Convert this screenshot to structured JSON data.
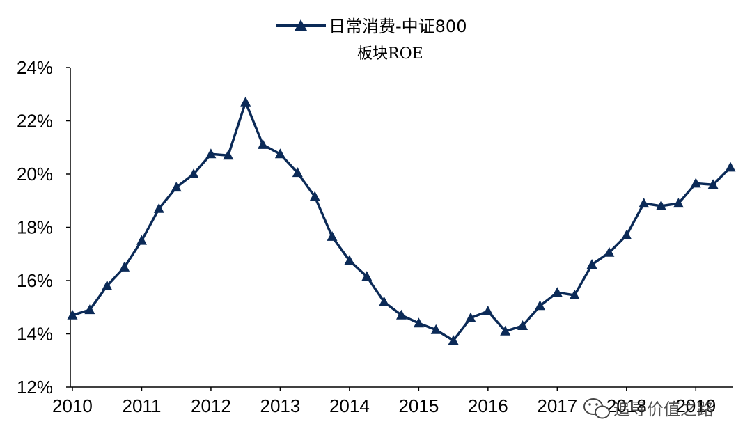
{
  "chart_data": {
    "type": "line",
    "legend": {
      "line1": "日常消费-中证800",
      "line2": "板块ROE",
      "placement": "top-center",
      "marker": "triangle"
    },
    "x_tick_labels": [
      "2010",
      "2011",
      "2012",
      "2013",
      "2014",
      "2015",
      "2016",
      "2017",
      "2018",
      "2019"
    ],
    "y_tick_labels": [
      "12%",
      "14%",
      "16%",
      "18%",
      "20%",
      "22%",
      "24%"
    ],
    "ylim": [
      12,
      24
    ],
    "grid": false,
    "series": [
      {
        "name": "日常消费-中证800板块ROE",
        "color": "#0b2a57",
        "x": [
          2010.0,
          2010.25,
          2010.5,
          2010.75,
          2011.0,
          2011.25,
          2011.5,
          2011.75,
          2012.0,
          2012.25,
          2012.5,
          2012.75,
          2013.0,
          2013.25,
          2013.5,
          2013.75,
          2014.0,
          2014.25,
          2014.5,
          2014.75,
          2015.0,
          2015.25,
          2015.5,
          2015.75,
          2016.0,
          2016.25,
          2016.5,
          2016.75,
          2017.0,
          2017.25,
          2017.5,
          2017.75,
          2018.0,
          2018.25,
          2018.5,
          2018.75,
          2019.0,
          2019.25,
          2019.5
        ],
        "values": [
          14.7,
          14.9,
          15.8,
          16.5,
          17.5,
          18.7,
          19.5,
          20.0,
          20.75,
          20.7,
          22.7,
          21.1,
          20.75,
          20.05,
          19.15,
          17.65,
          16.75,
          16.15,
          15.2,
          14.7,
          14.4,
          14.15,
          13.75,
          14.6,
          14.85,
          14.1,
          14.3,
          15.05,
          15.55,
          15.45,
          16.6,
          17.05,
          17.7,
          18.9,
          18.8,
          18.9,
          19.65,
          19.6,
          20.25
        ]
      }
    ],
    "watermark": "追寻价值之路"
  }
}
